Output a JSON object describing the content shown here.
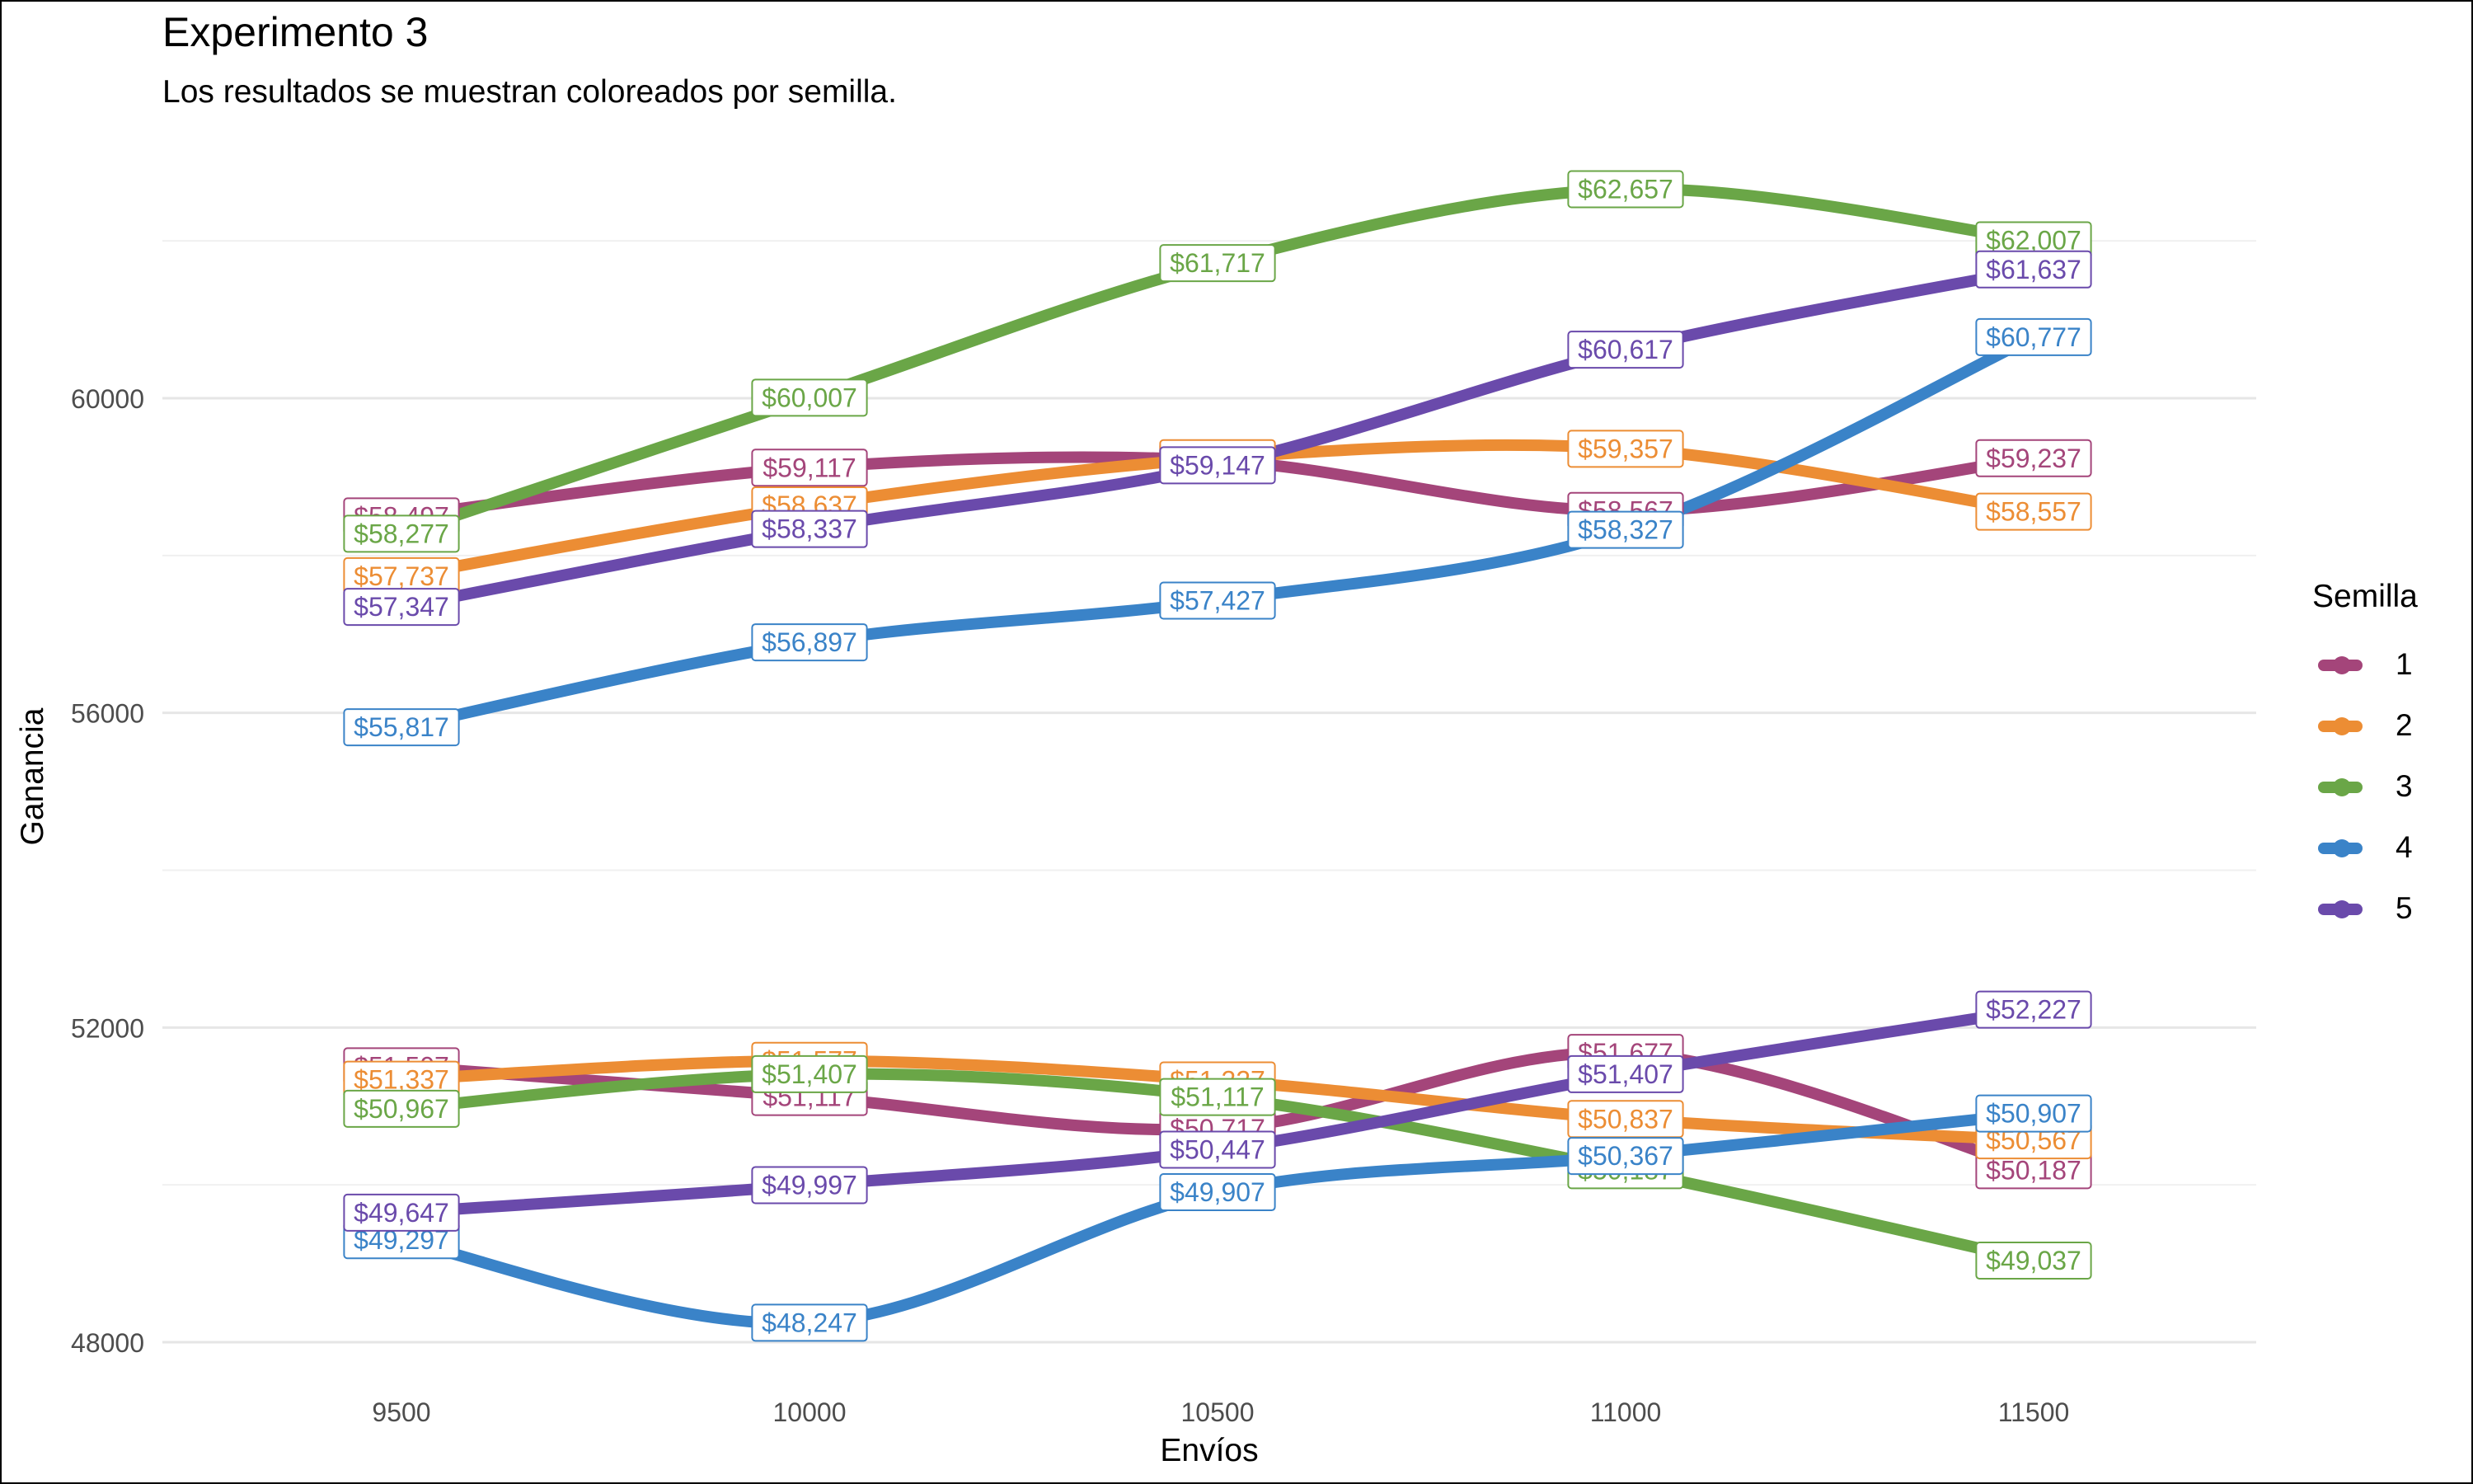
{
  "chart_data": {
    "type": "line",
    "title": "Experimento 3",
    "subtitle": "Los resultados se muestran coloreados por semilla.",
    "xlabel": "Envíos",
    "ylabel": "Ganancia",
    "xlim": [
      9200,
      11800
    ],
    "ylim": [
      47600,
      63200
    ],
    "x_ticks": [
      9500,
      10000,
      10500,
      11000,
      11500
    ],
    "y_ticks": [
      48000,
      52000,
      56000,
      60000
    ],
    "y_minor_gridlines": [
      50000,
      54000,
      58000,
      62000
    ],
    "grid": true,
    "label_prefix": "$",
    "legend": {
      "title": "Semilla",
      "position": "right"
    },
    "series": [
      {
        "name": "1",
        "color": "#A4457A",
        "run": 1,
        "x": [
          9500,
          10000,
          10500,
          11000,
          11500
        ],
        "values": [
          58497,
          59117,
          59207,
          58567,
          59237
        ]
      },
      {
        "name": "2",
        "color": "#EC8D34",
        "run": 1,
        "x": [
          9500,
          10000,
          10500,
          11000,
          11500
        ],
        "values": [
          57737,
          58637,
          59237,
          59357,
          58557
        ]
      },
      {
        "name": "3",
        "color": "#6AA647",
        "run": 1,
        "x": [
          9500,
          10000,
          10500,
          11000,
          11500
        ],
        "values": [
          58277,
          60007,
          61717,
          62657,
          62007
        ]
      },
      {
        "name": "4",
        "color": "#3A83C8",
        "run": 1,
        "x": [
          9500,
          10000,
          10500,
          11000,
          11500
        ],
        "values": [
          55817,
          56897,
          57427,
          58327,
          60777
        ]
      },
      {
        "name": "5",
        "color": "#6A4AAB",
        "run": 1,
        "x": [
          9500,
          10000,
          10500,
          11000,
          11500
        ],
        "values": [
          57347,
          58337,
          59147,
          60617,
          61637
        ]
      },
      {
        "name": "1",
        "color": "#A4457A",
        "run": 2,
        "x": [
          9500,
          10000,
          10500,
          11000,
          11500
        ],
        "values": [
          51507,
          51117,
          50717,
          51677,
          50187
        ]
      },
      {
        "name": "2",
        "color": "#EC8D34",
        "run": 2,
        "x": [
          9500,
          10000,
          10500,
          11000,
          11500
        ],
        "values": [
          51337,
          51577,
          51327,
          50837,
          50567
        ]
      },
      {
        "name": "3",
        "color": "#6AA647",
        "run": 2,
        "x": [
          9500,
          10000,
          10500,
          11000,
          11500
        ],
        "values": [
          50967,
          51407,
          51117,
          50187,
          49037
        ]
      },
      {
        "name": "4",
        "color": "#3A83C8",
        "run": 2,
        "x": [
          9500,
          10000,
          10500,
          11000,
          11500
        ],
        "values": [
          49297,
          48247,
          49907,
          50367,
          50907
        ]
      },
      {
        "name": "5",
        "color": "#6A4AAB",
        "run": 2,
        "x": [
          9500,
          10000,
          10500,
          11000,
          11500
        ],
        "values": [
          49647,
          49997,
          50447,
          51407,
          52227
        ]
      }
    ]
  }
}
